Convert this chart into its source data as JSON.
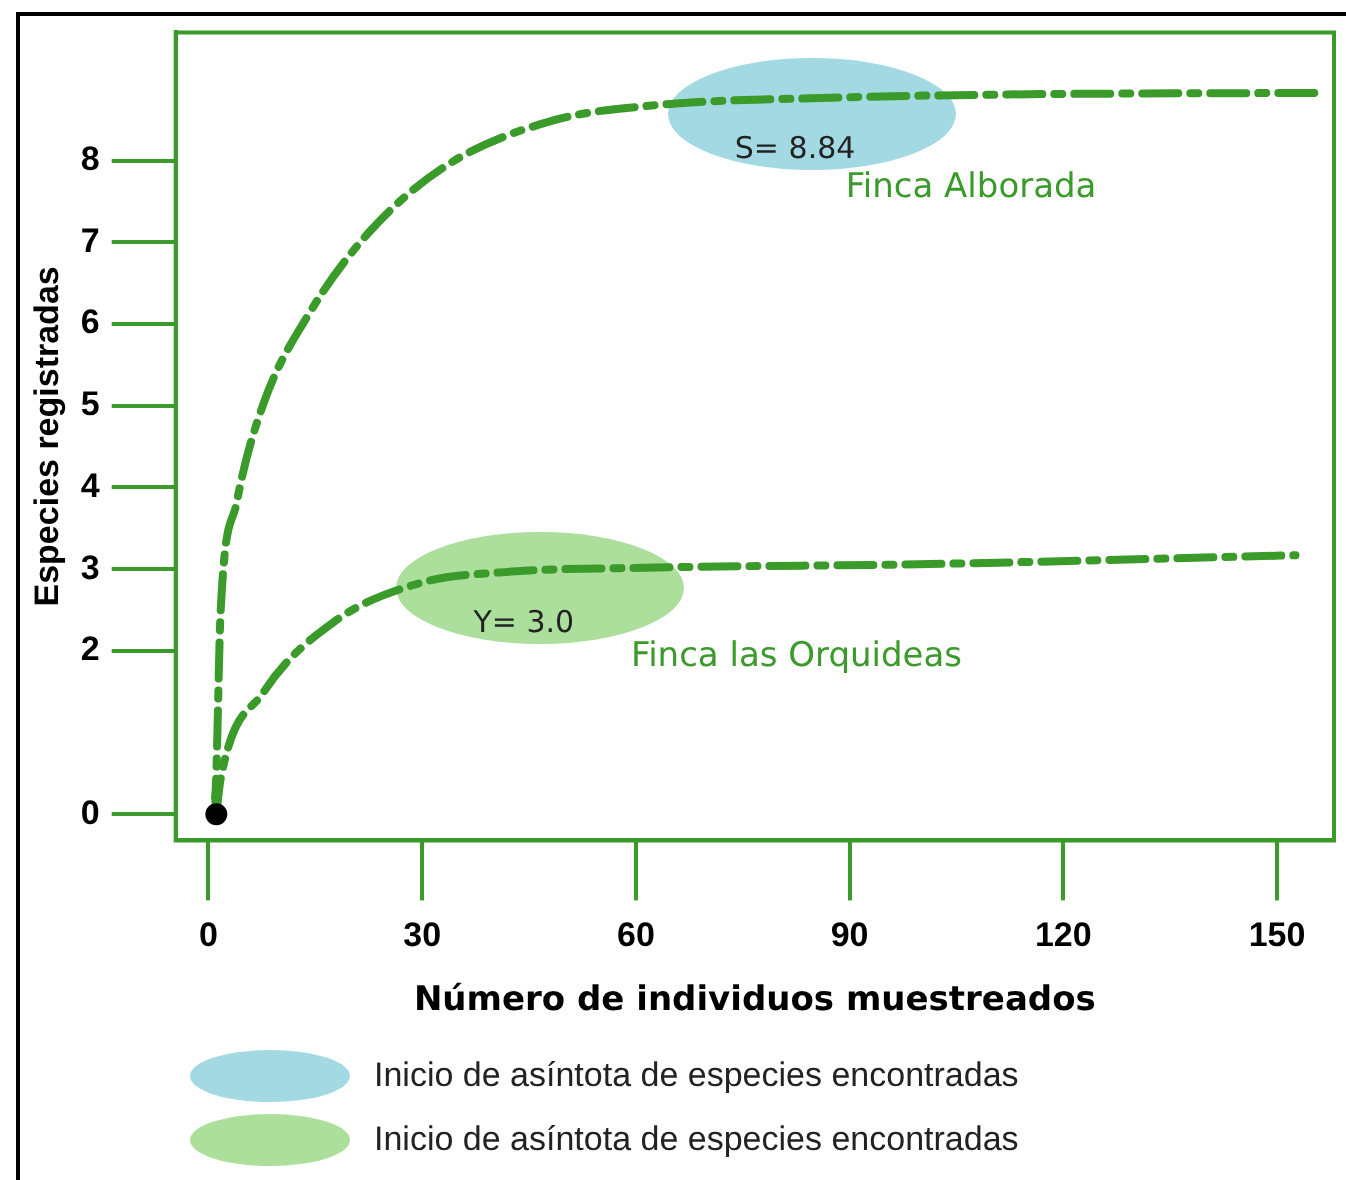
{
  "chart_data": {
    "type": "line",
    "xlabel": "Número de individuos muestreados",
    "ylabel": "Especies registradas",
    "xlim": [
      -4.6,
      158
    ],
    "xticks": [
      0,
      30,
      60,
      90,
      120,
      150
    ],
    "ylim": [
      -0.32,
      9.57
    ],
    "yticks": [
      0,
      2,
      3,
      4,
      5,
      6,
      7,
      8
    ],
    "grid": false,
    "line_style": "dashed",
    "series": [
      {
        "name": "Finca Alborada",
        "color": "#3a9a2a",
        "x": [
          1.1,
          0.9,
          1.7,
          4.0,
          7.7,
          14.0,
          22.6,
          33.4,
          48.3,
          62.9,
          87.4,
          112,
          156
        ],
        "values": [
          0,
          0.21,
          2.47,
          3.83,
          5.02,
          6.11,
          7.13,
          7.94,
          8.49,
          8.68,
          8.77,
          8.81,
          8.83
        ]
      },
      {
        "name": "Finca las Orquideas",
        "color": "#3a9a2a",
        "x": [
          1.1,
          1.7,
          7.7,
          17.7,
          29.7,
          40.9,
          62.9,
          99.7,
          152.6
        ],
        "values": [
          0,
          0.43,
          1.49,
          2.36,
          2.83,
          2.96,
          3.02,
          3.06,
          3.17
        ]
      },
      {
        "type": "scatter",
        "color": "#000000",
        "x": [
          1.1
        ],
        "values": [
          0
        ]
      }
    ],
    "annotations": [
      {
        "text": "S= 8.84",
        "x": 87.4,
        "y": 8.77
      },
      {
        "text": "Y= 3.0",
        "x": 40.9,
        "y": 2.96
      },
      "Inicio de asíntota de especies encontradas",
      "Inicio de asíntota de especies encontradas"
    ]
  }
}
